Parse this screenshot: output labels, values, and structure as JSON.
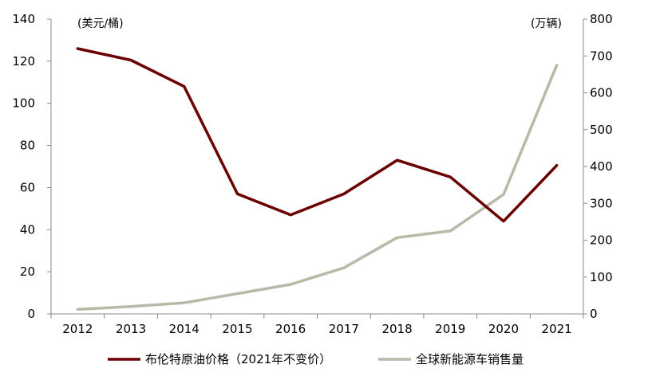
{
  "chart_data": {
    "type": "line",
    "categories": [
      "2012",
      "2013",
      "2014",
      "2015",
      "2016",
      "2017",
      "2018",
      "2019",
      "2020",
      "2021"
    ],
    "y_left_unit": "(美元/桶)",
    "y_right_unit": "(万辆)",
    "y_left_ticks": [
      "0",
      "20",
      "40",
      "60",
      "80",
      "100",
      "120",
      "140"
    ],
    "y_right_ticks": [
      "0",
      "100",
      "200",
      "300",
      "400",
      "500",
      "600",
      "700",
      "800"
    ],
    "ylim_left": [
      0,
      140
    ],
    "ylim_right": [
      0,
      800
    ],
    "grid": false,
    "legend_position": "bottom",
    "series": [
      {
        "name": "布伦特原油价格（2021年不变价）",
        "axis": "left",
        "color": "#6b0000",
        "values": [
          126,
          120.5,
          108,
          57,
          47,
          57,
          73,
          65,
          44,
          70.5
        ]
      },
      {
        "name": "全球新能源车销售量",
        "axis": "right",
        "color": "#b9b9a8",
        "values": [
          12,
          20,
          30,
          55,
          80,
          125,
          207,
          225,
          324,
          675
        ]
      }
    ]
  }
}
